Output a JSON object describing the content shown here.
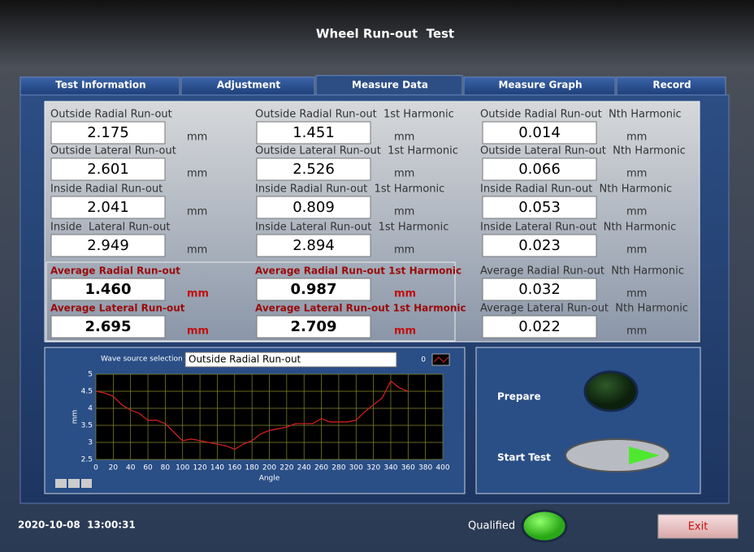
{
  "window": {
    "title": "Wheel Run-out  Test",
    "timestamp": "2020-10-08  13:00:31"
  },
  "tabs": [
    "Test Information",
    "Adjustment",
    "Measure Data",
    "Measure Graph",
    "Record"
  ],
  "measurements": [
    {
      "label": "Outside Radial Run-out",
      "value": "2.175",
      "unit": "mm"
    },
    {
      "label": "Outside Radial Run-out  1st Harmonic",
      "value": "1.451",
      "unit": "mm"
    },
    {
      "label": "Outside Radial Run-out  Nth Harmonic",
      "value": "0.014",
      "unit": "mm"
    },
    {
      "label": "Outside Lateral Run-out",
      "value": "2.601",
      "unit": "mm"
    },
    {
      "label": "Outside Lateral Run-out  1st Harmonic",
      "value": "2.526",
      "unit": "mm"
    },
    {
      "label": "Outside Lateral Run-out  Nth Harmonic",
      "value": "0.066",
      "unit": "mm"
    },
    {
      "label": "Inside Radial Run-out",
      "value": "2.041",
      "unit": "mm"
    },
    {
      "label": "Inside Radial Run-out  1st Harmonic",
      "value": "0.809",
      "unit": "mm"
    },
    {
      "label": "Inside Radial Run-out  Nth Harmonic",
      "value": "0.053",
      "unit": "mm"
    },
    {
      "label": "Inside  Lateral Run-out",
      "value": "2.949",
      "unit": "mm"
    },
    {
      "label": "Inside Lateral Run-out  1st Harmonic",
      "value": "2.894",
      "unit": "mm"
    },
    {
      "label": "Inside Lateral Run-out  Nth Harmonic",
      "value": "0.023",
      "unit": "mm"
    },
    {
      "label": "Average Radial Run-out",
      "value": "1.460",
      "unit": "mm"
    },
    {
      "label": "Average Radial Run-out 1st Harmonic",
      "value": "0.987",
      "unit": "mm"
    },
    {
      "label": "Average Radial Run-out  Nth Harmonic",
      "value": "0.032",
      "unit": "mm"
    },
    {
      "label": "Average Lateral Run-out",
      "value": "2.695",
      "unit": "mm"
    },
    {
      "label": "Average Lateral Run-out 1st Harmonic",
      "value": "2.709",
      "unit": "mm"
    },
    {
      "label": "Average Lateral Run-out  Nth Harmonic",
      "value": "0.022",
      "unit": "mm"
    }
  ],
  "wave_source": {
    "label": "Wave source selection",
    "selected": "Outside Radial Run-out"
  },
  "controls": {
    "prepare": "Prepare",
    "start": "Start Test",
    "qualified": "Qualified",
    "exit": "Exit"
  },
  "chart_data": {
    "type": "line",
    "xlabel": "Angle",
    "ylabel": "mm",
    "x": [
      0,
      10,
      20,
      30,
      40,
      50,
      60,
      70,
      80,
      90,
      100,
      110,
      120,
      130,
      140,
      150,
      160,
      170,
      180,
      190,
      200,
      210,
      220,
      230,
      240,
      250,
      260,
      270,
      280,
      290,
      300,
      310,
      320,
      330,
      340,
      350,
      360
    ],
    "series": [
      {
        "name": "0",
        "color": "#cc1f1f",
        "values": [
          4.5,
          4.45,
          4.35,
          4.1,
          3.95,
          3.85,
          3.65,
          3.65,
          3.55,
          3.3,
          3.05,
          3.1,
          3.05,
          3.0,
          2.95,
          2.9,
          2.8,
          2.95,
          3.05,
          3.25,
          3.35,
          3.4,
          3.45,
          3.55,
          3.55,
          3.55,
          3.7,
          3.6,
          3.6,
          3.6,
          3.65,
          3.9,
          4.1,
          4.3,
          4.8,
          4.6,
          4.5
        ]
      }
    ],
    "xlim": [
      0,
      400
    ],
    "xticks": [
      0,
      20,
      40,
      60,
      80,
      100,
      120,
      140,
      160,
      180,
      200,
      220,
      240,
      260,
      280,
      300,
      320,
      340,
      360,
      380,
      400
    ],
    "ylim": [
      2.5,
      5
    ],
    "yticks": [
      2.5,
      3,
      3.5,
      4,
      4.5,
      5
    ],
    "grid": true
  }
}
